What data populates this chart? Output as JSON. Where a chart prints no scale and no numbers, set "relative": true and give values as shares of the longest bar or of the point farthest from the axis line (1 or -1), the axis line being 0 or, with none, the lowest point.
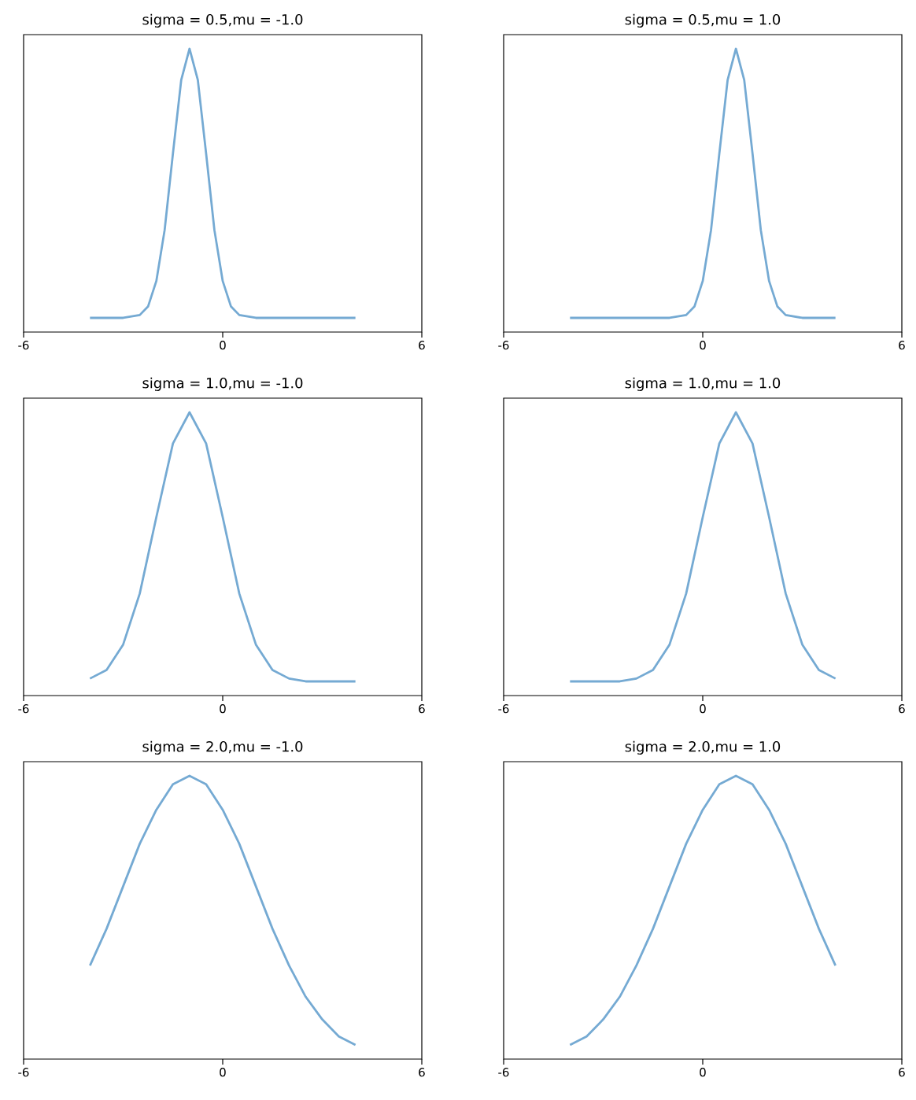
{
  "chart_data": [
    {
      "type": "line",
      "title": "sigma = 0.5,mu = -1.0",
      "relative": true,
      "xlim": [
        -6,
        6
      ],
      "xticks": [
        -6,
        0,
        6
      ],
      "series": [
        {
          "color": "#75aad3",
          "x": [
            -4,
            -3,
            -2.5,
            -2.25,
            -2,
            -1.75,
            -1.5,
            -1.25,
            -1,
            -0.75,
            -0.5,
            -0.25,
            0,
            0.25,
            0.5,
            1,
            2,
            3,
            4
          ],
          "values": [
            0.05,
            0.05,
            0.06,
            0.09,
            0.18,
            0.36,
            0.63,
            0.89,
            1.0,
            0.89,
            0.63,
            0.36,
            0.18,
            0.09,
            0.06,
            0.05,
            0.05,
            0.05,
            0.05
          ]
        }
      ]
    },
    {
      "type": "line",
      "title": "sigma = 0.5,mu = 1.0",
      "relative": true,
      "xlim": [
        -6,
        6
      ],
      "xticks": [
        -6,
        0,
        6
      ],
      "series": [
        {
          "color": "#75aad3",
          "x": [
            -4,
            -3,
            -2,
            -1,
            -0.5,
            -0.25,
            0,
            0.25,
            0.5,
            0.75,
            1,
            1.25,
            1.5,
            1.75,
            2,
            2.25,
            2.5,
            3,
            4
          ],
          "values": [
            0.05,
            0.05,
            0.05,
            0.05,
            0.06,
            0.09,
            0.18,
            0.36,
            0.63,
            0.89,
            1.0,
            0.89,
            0.63,
            0.36,
            0.18,
            0.09,
            0.06,
            0.05,
            0.05
          ]
        }
      ]
    },
    {
      "type": "line",
      "title": "sigma = 1.0,mu = -1.0",
      "relative": true,
      "xlim": [
        -6,
        6
      ],
      "xticks": [
        -6,
        0,
        6
      ],
      "series": [
        {
          "color": "#75aad3",
          "x": [
            -4,
            -3.5,
            -3,
            -2.5,
            -2,
            -1.5,
            -1,
            -0.5,
            0,
            0.5,
            1,
            1.5,
            2,
            2.5,
            3,
            3.5,
            4
          ],
          "values": [
            0.06,
            0.09,
            0.18,
            0.36,
            0.63,
            0.89,
            1.0,
            0.89,
            0.63,
            0.36,
            0.18,
            0.09,
            0.06,
            0.05,
            0.05,
            0.05,
            0.05
          ]
        }
      ]
    },
    {
      "type": "line",
      "title": "sigma = 1.0,mu = 1.0",
      "relative": true,
      "xlim": [
        -6,
        6
      ],
      "xticks": [
        -6,
        0,
        6
      ],
      "series": [
        {
          "color": "#75aad3",
          "x": [
            -4,
            -3.5,
            -3,
            -2.5,
            -2,
            -1.5,
            -1,
            -0.5,
            0,
            0.5,
            1,
            1.5,
            2,
            2.5,
            3,
            3.5,
            4
          ],
          "values": [
            0.05,
            0.05,
            0.05,
            0.05,
            0.06,
            0.09,
            0.18,
            0.36,
            0.63,
            0.89,
            1.0,
            0.89,
            0.63,
            0.36,
            0.18,
            0.09,
            0.06
          ]
        }
      ]
    },
    {
      "type": "line",
      "title": "sigma = 2.0,mu = -1.0",
      "relative": true,
      "xlim": [
        -6,
        6
      ],
      "xticks": [
        -6,
        0,
        6
      ],
      "series": [
        {
          "color": "#75aad3",
          "x": [
            -4,
            -3.5,
            -3,
            -2.5,
            -2,
            -1.5,
            -1,
            -0.5,
            0,
            0.5,
            1,
            1.5,
            2,
            2.5,
            3,
            3.5,
            4
          ],
          "values": [
            0.33,
            0.46,
            0.61,
            0.76,
            0.88,
            0.97,
            1.0,
            0.97,
            0.88,
            0.76,
            0.61,
            0.46,
            0.33,
            0.22,
            0.14,
            0.08,
            0.05
          ]
        }
      ]
    },
    {
      "type": "line",
      "title": "sigma = 2.0,mu = 1.0",
      "relative": true,
      "xlim": [
        -6,
        6
      ],
      "xticks": [
        -6,
        0,
        6
      ],
      "series": [
        {
          "color": "#75aad3",
          "x": [
            -4,
            -3.5,
            -3,
            -2.5,
            -2,
            -1.5,
            -1,
            -0.5,
            0,
            0.5,
            1,
            1.5,
            2,
            2.5,
            3,
            3.5,
            4
          ],
          "values": [
            0.05,
            0.08,
            0.14,
            0.22,
            0.33,
            0.46,
            0.61,
            0.76,
            0.88,
            0.97,
            1.0,
            0.97,
            0.88,
            0.76,
            0.61,
            0.46,
            0.33
          ]
        }
      ]
    }
  ]
}
